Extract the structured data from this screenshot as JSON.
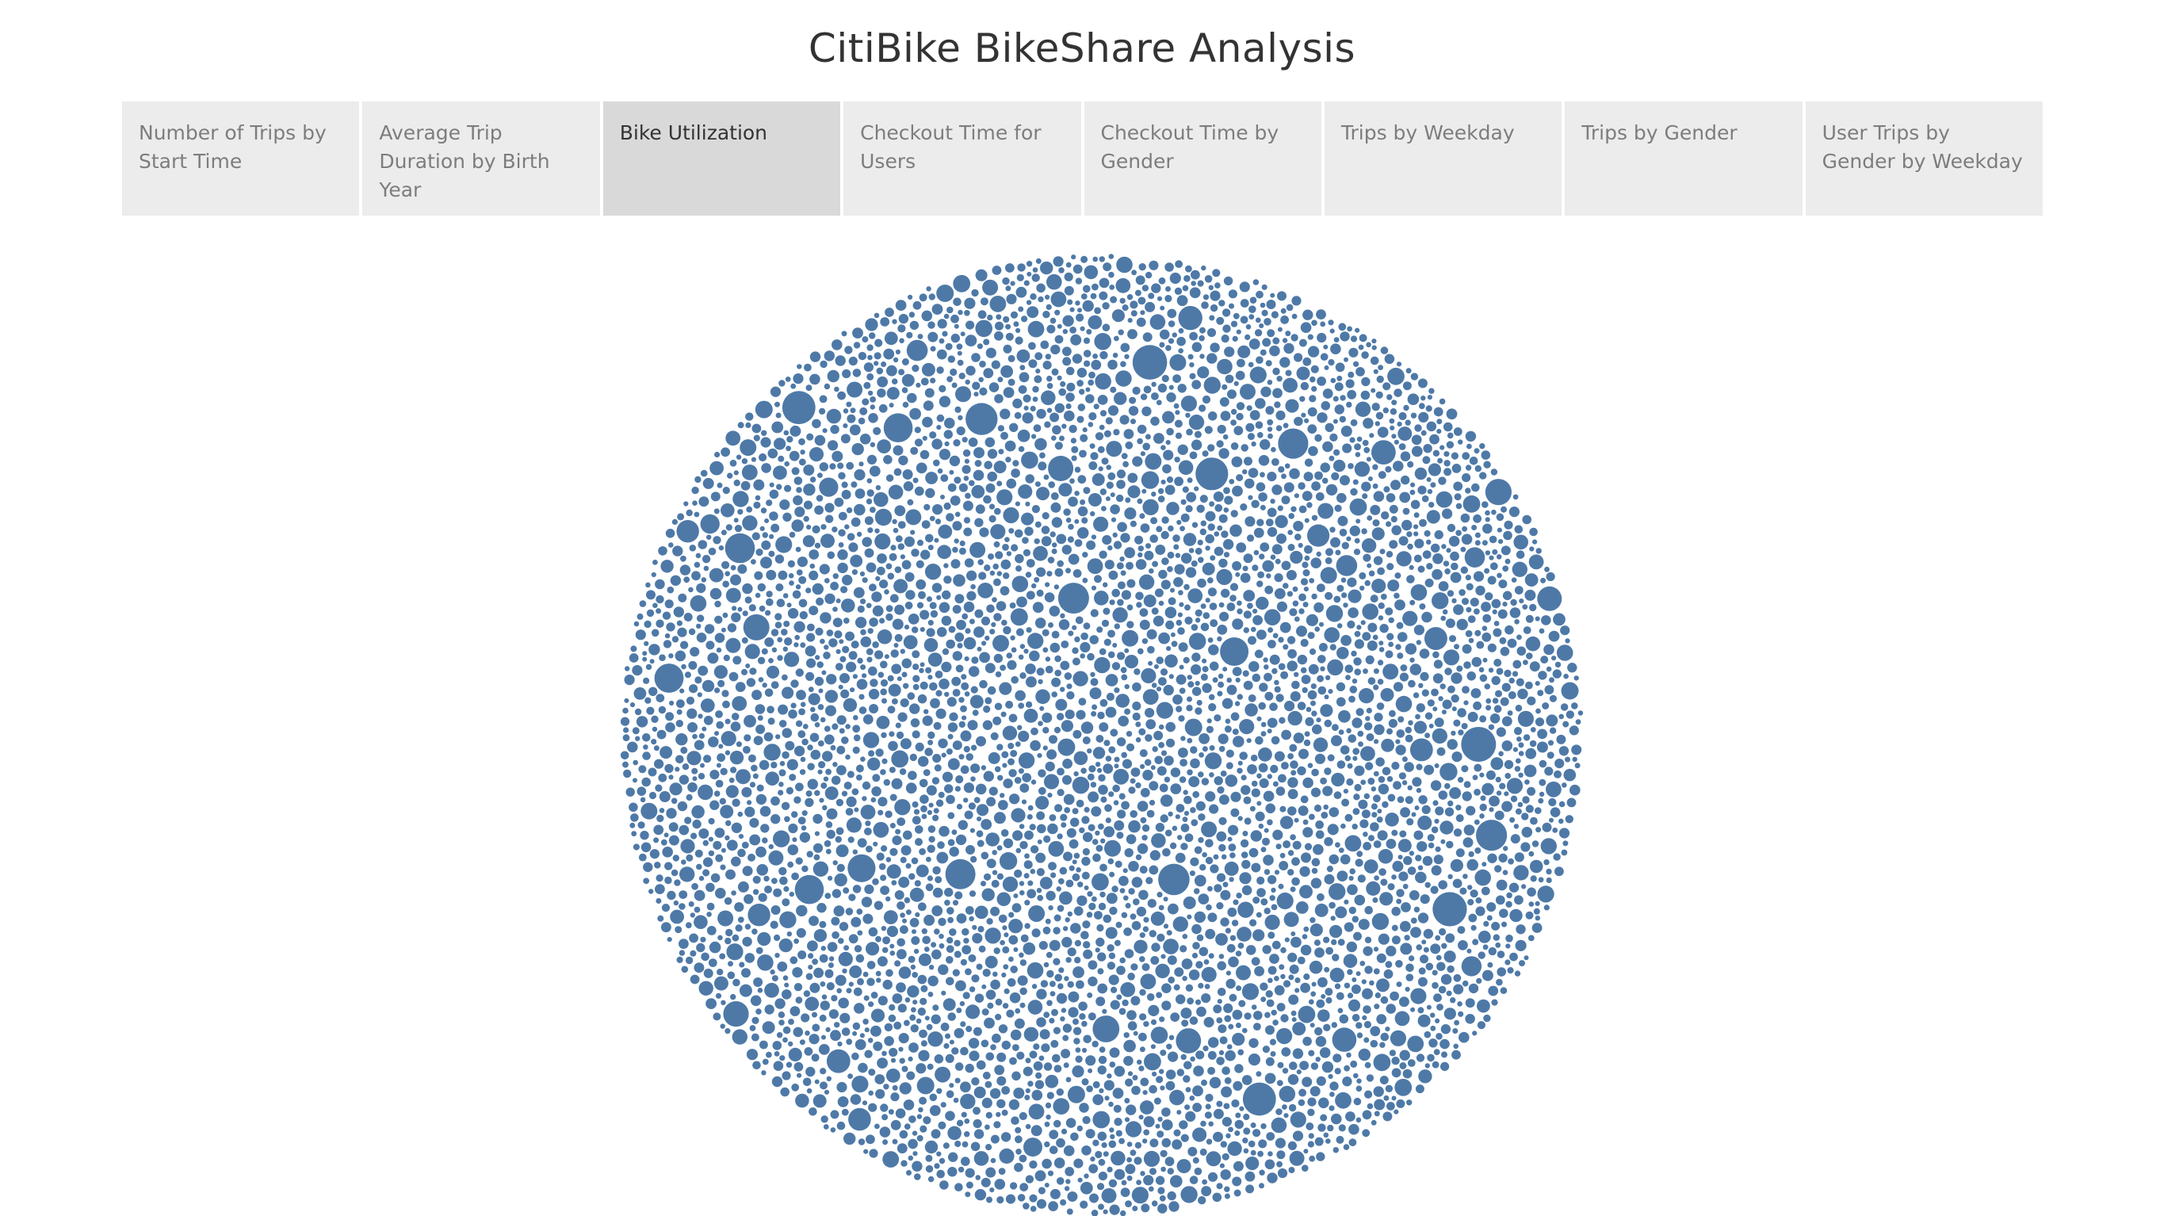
{
  "dashboard": {
    "title": "CitiBike BikeShare Analysis"
  },
  "tabs": [
    {
      "label": "Number of Trips by Start Time",
      "active": false
    },
    {
      "label": "Average Trip Duration by Birth Year",
      "active": false
    },
    {
      "label": "Bike Utilization",
      "active": true
    },
    {
      "label": "Checkout Time for Users",
      "active": false
    },
    {
      "label": "Checkout Time by Gender",
      "active": false
    },
    {
      "label": "Trips by Weekday",
      "active": false
    },
    {
      "label": "Trips by Gender",
      "active": false
    },
    {
      "label": "User Trips by Gender by Weekday",
      "active": false
    }
  ],
  "colors": {
    "bubble": "#4e79a7",
    "tab_bg": "#ececec",
    "tab_active_bg": "#d9d9d9"
  },
  "chart_data": {
    "type": "packed-bubble",
    "title": "",
    "series_color": "#4e79a7",
    "legend": "none",
    "note_on_values": "Individual bubble values are not labeled in the screenshot; sizes vary from many small to a few large bubbles."
  }
}
